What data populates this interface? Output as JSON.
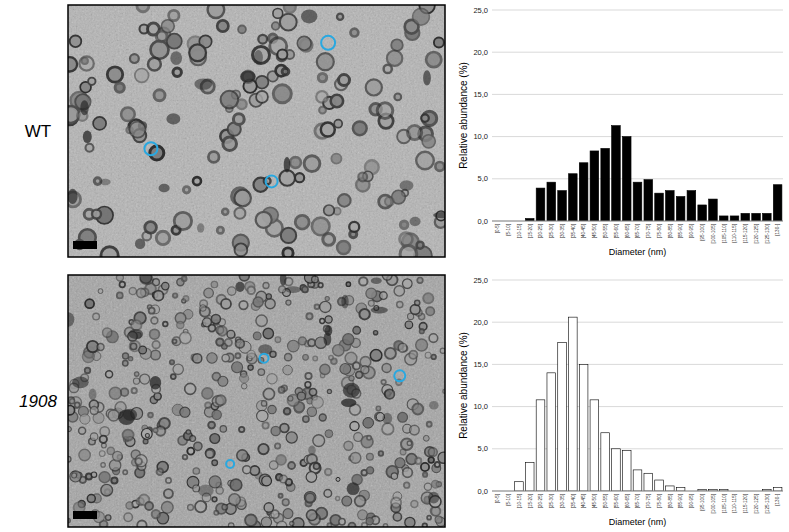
{
  "chart_data": [
    {
      "type": "bar",
      "title": "WT",
      "x_label": "Diameter (nm)",
      "y_label": "Relative abundance (%)",
      "categories": [
        "[0-5[",
        "[5-10[",
        "[10-15[",
        "[15-20[",
        "[20-25[",
        "[25-30[",
        "[30-35[",
        "[35-40[",
        "[40-45[",
        "[45-50[",
        "[50-55[",
        "[55-60[",
        "[60-65[",
        "[65-70[",
        "[70-75[",
        "[75-80[",
        "[80-85[",
        "[85-90[",
        "[90-95[",
        "[95-100[",
        "[100-105[",
        "[105-110[",
        "[110-115[",
        "[115-120[",
        "[120-125[",
        "[125-130[",
        "[130-["
      ],
      "values": [
        0,
        0,
        0,
        0.3,
        3.9,
        4.6,
        3.6,
        5.6,
        6.9,
        8.3,
        8.6,
        11.3,
        10.0,
        4.6,
        4.9,
        3.3,
        3.6,
        2.9,
        3.6,
        1.9,
        2.6,
        0.6,
        0.6,
        0.9,
        0.9,
        0.9,
        4.3
      ],
      "color": "#000000",
      "ylim": [
        0,
        25
      ],
      "yticks": [
        {
          "value": 0,
          "label": "0,0"
        },
        {
          "value": 5,
          "label": "5,0"
        },
        {
          "value": 10,
          "label": "10,0"
        },
        {
          "value": 15,
          "label": "15,0"
        },
        {
          "value": 20,
          "label": "20,0"
        },
        {
          "value": 25,
          "label": "25,0"
        }
      ],
      "grid": true
    },
    {
      "type": "bar",
      "title": "1908",
      "x_label": "Diameter (nm)",
      "y_label": "Relative abundance (%)",
      "categories": [
        "[0-5[",
        "[5-10[",
        "[10-15[",
        "[15-20[",
        "[20-25[",
        "[25-30[",
        "[30-35[",
        "[35-40[",
        "[40-45[",
        "[45-50[",
        "[50-55[",
        "[55-60[",
        "[60-65[",
        "[65-70[",
        "[70-75[",
        "[75-80[",
        "[80-85[",
        "[85-90[",
        "[90-95[",
        "[95-100[",
        "[100-105[",
        "[105-110[",
        "[110-115[",
        "[115-120[",
        "[120-125[",
        "[125-130[",
        "[130-["
      ],
      "values": [
        0,
        0,
        1.1,
        3.4,
        10.8,
        14.0,
        17.6,
        20.6,
        15.0,
        10.8,
        6.9,
        5.0,
        4.8,
        2.5,
        2.1,
        1.3,
        0.6,
        0.4,
        0,
        0.2,
        0.2,
        0.2,
        0,
        0,
        0,
        0.2,
        0.4
      ],
      "color": "#ffffff",
      "ylim": [
        0,
        25
      ],
      "yticks": [
        {
          "value": 0,
          "label": "0,0"
        },
        {
          "value": 5,
          "label": "5,0"
        },
        {
          "value": 10,
          "label": "10,0"
        },
        {
          "value": 15,
          "label": "15,0"
        },
        {
          "value": 20,
          "label": "20,0"
        },
        {
          "value": 25,
          "label": "25,0"
        }
      ],
      "grid": true
    }
  ]
}
